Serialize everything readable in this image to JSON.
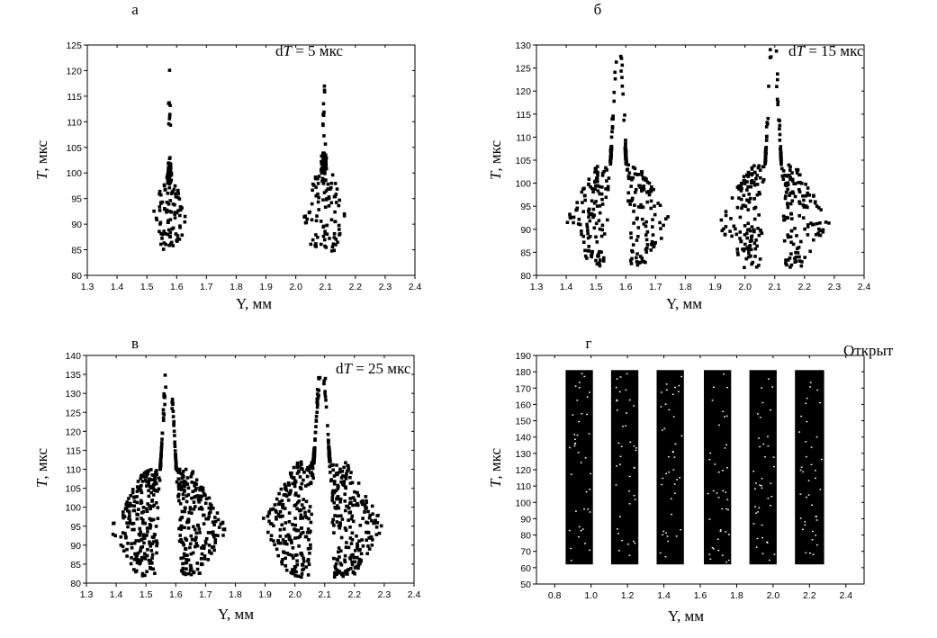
{
  "chart_data": [
    {
      "type": "scatter",
      "letter": "а",
      "annotation": "dT = 5 мкс",
      "annotation_main": "d",
      "annotation_var": "T",
      "annotation_rest": " = 5 мкс",
      "xlabel": "Y,  мм",
      "ylabel_var": "T",
      "ylabel_unit": ",  мкс",
      "xlim": [
        1.3,
        2.4
      ],
      "ylim": [
        80,
        125
      ],
      "xticks": [
        "1.3",
        "1.4",
        "1.5",
        "1.6",
        "1.7",
        "1.8",
        "1.9",
        "2.0",
        "2.1",
        "2.2",
        "2.3",
        "2.4"
      ],
      "yticks": [
        "80",
        "85",
        "90",
        "95",
        "100",
        "105",
        "110",
        "115",
        "120",
        "125"
      ],
      "series": [
        {
          "x_center": 1.575,
          "x_halfwidth": 0.06,
          "y_min": 85,
          "y_max": 120.5,
          "narrow_above": 98,
          "points": 130,
          "seed": 11
        },
        {
          "x_center": 2.095,
          "x_halfwidth": 0.075,
          "y_min": 84.5,
          "y_max": 117,
          "narrow_above": 100,
          "points": 150,
          "seed": 23
        }
      ]
    },
    {
      "type": "scatter",
      "letter": "б",
      "annotation": "dT = 15 мкс",
      "annotation_main": "d",
      "annotation_var": "T",
      "annotation_rest": " = 15 мкс",
      "xlabel": "Y,  мм",
      "ylabel_var": "T",
      "ylabel_unit": ",  мкс",
      "xlim": [
        1.3,
        2.4
      ],
      "ylim": [
        80,
        130
      ],
      "xticks": [
        "1.3",
        "1.4",
        "1.5",
        "1.6",
        "1.7",
        "1.8",
        "1.9",
        "2.0",
        "2.1",
        "2.2",
        "2.3",
        "2.4"
      ],
      "yticks": [
        "80",
        "85",
        "90",
        "95",
        "100",
        "105",
        "110",
        "115",
        "120",
        "125",
        "130"
      ],
      "series": [
        {
          "x_center": 1.575,
          "x_halfwidth": 0.18,
          "y_min": 82,
          "y_max": 129,
          "narrow_above": 104,
          "points": 330,
          "seed": 37
        },
        {
          "x_center": 2.095,
          "x_halfwidth": 0.19,
          "y_min": 81.5,
          "y_max": 129,
          "narrow_above": 104,
          "points": 340,
          "seed": 41
        }
      ]
    },
    {
      "type": "scatter",
      "letter": "в",
      "annotation": "dT = 25 мкс",
      "annotation_main": "d",
      "annotation_var": "T",
      "annotation_rest": " = 25 мкс",
      "xlabel": "Y,  мм",
      "ylabel_var": "T",
      "ylabel_unit": ",  мкс",
      "xlim": [
        1.3,
        2.4
      ],
      "ylim": [
        80,
        140
      ],
      "xticks": [
        "1.3",
        "1.4",
        "1.5",
        "1.6",
        "1.7",
        "1.8",
        "1.9",
        "2.0",
        "2.1",
        "2.2",
        "2.3",
        "2.4"
      ],
      "yticks": [
        "80",
        "85",
        "90",
        "95",
        "100",
        "105",
        "110",
        "115",
        "120",
        "125",
        "130",
        "135",
        "140"
      ],
      "series": [
        {
          "x_center": 1.575,
          "x_halfwidth": 0.2,
          "y_min": 81.5,
          "y_max": 135,
          "narrow_above": 110,
          "points": 560,
          "seed": 53
        },
        {
          "x_center": 2.09,
          "x_halfwidth": 0.21,
          "y_min": 81.5,
          "y_max": 135,
          "narrow_above": 112,
          "points": 580,
          "seed": 67
        }
      ]
    },
    {
      "type": "scatter",
      "letter": "г",
      "annotation": "Открыт",
      "xlabel": "Y,  мм",
      "ylabel_var": "T",
      "ylabel_unit": ",  мкс",
      "xlim": [
        0.7,
        2.5
      ],
      "ylim": [
        50,
        190
      ],
      "xticks": [
        "0.8",
        "1.0",
        "1.2",
        "1.4",
        "1.6",
        "1.8",
        "2.0",
        "2.2",
        "2.4"
      ],
      "yticks": [
        "50",
        "60",
        "70",
        "80",
        "90",
        "100",
        "110",
        "120",
        "130",
        "140",
        "150",
        "160",
        "170",
        "180",
        "190"
      ],
      "columns": [
        {
          "x_min": 0.86,
          "x_max": 1.01
        },
        {
          "x_min": 1.11,
          "x_max": 1.26
        },
        {
          "x_min": 1.36,
          "x_max": 1.51
        },
        {
          "x_min": 1.62,
          "x_max": 1.77
        },
        {
          "x_min": 1.87,
          "x_max": 2.02
        },
        {
          "x_min": 2.12,
          "x_max": 2.28
        }
      ],
      "y_range": [
        62,
        181
      ]
    }
  ]
}
